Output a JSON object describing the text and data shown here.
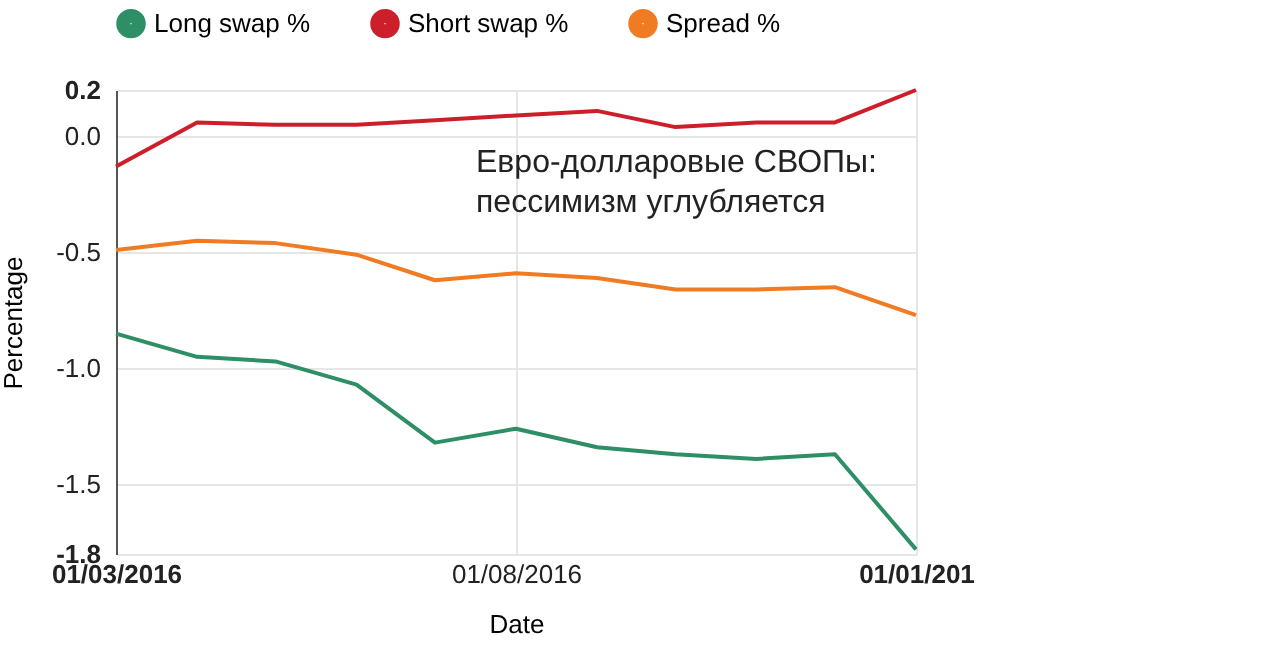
{
  "chart_data": {
    "type": "line",
    "x": [
      "2016-03-01",
      "2016-04-01",
      "2016-05-01",
      "2016-06-01",
      "2016-07-01",
      "2016-08-01",
      "2016-09-01",
      "2016-10-01",
      "2016-11-01",
      "2016-12-01",
      "2017-01-01"
    ],
    "series": [
      {
        "name": "Long swap %",
        "color": "#2e8f66",
        "values": [
          -0.85,
          -0.95,
          -0.97,
          -1.07,
          -1.32,
          -1.26,
          -1.34,
          -1.37,
          -1.39,
          -1.37,
          -1.78
        ]
      },
      {
        "name": "Short swap %",
        "color": "#cc1f2a",
        "values": [
          -0.13,
          0.06,
          0.05,
          0.05,
          0.07,
          0.09,
          0.11,
          0.04,
          0.06,
          0.06,
          0.2
        ]
      },
      {
        "name": "Spread %",
        "color": "#f07b22",
        "values": [
          -0.49,
          -0.45,
          -0.46,
          -0.51,
          -0.62,
          -0.59,
          -0.61,
          -0.66,
          -0.66,
          -0.65,
          -0.77
        ]
      }
    ],
    "xlabel": "Date",
    "ylabel": "Percentage",
    "xlim": [
      "2016-03-01",
      "2017-01-01"
    ],
    "xticks": [
      {
        "value": "2016-03-01",
        "label": "01/03/2016"
      },
      {
        "value": "2016-08-01",
        "label": "01/08/2016"
      },
      {
        "value": "2017-01-01",
        "label": "01/01/201"
      }
    ],
    "ylim": [
      -1.8,
      0.2
    ],
    "yticks": [
      0.2,
      {
        "value": 0,
        "label": "0.0"
      },
      -0.5,
      {
        "value": -1,
        "label": "-1.0"
      },
      -1.5,
      -1.8
    ],
    "annotations": [
      "Евро-долларовые СВОПы:\nпессимизм углубляется"
    ],
    "grid": true,
    "legend": "top",
    "marker": "none",
    "line_style": "solid"
  }
}
